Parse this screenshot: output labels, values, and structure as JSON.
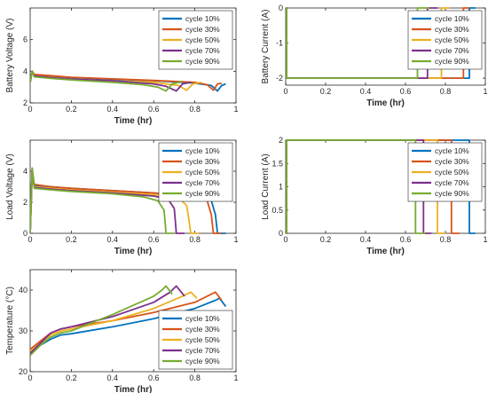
{
  "series_colors": [
    "#0072BD",
    "#D95319",
    "#EDB120",
    "#7E2F8E",
    "#77AC30"
  ],
  "chart_data": [
    {
      "type": "line",
      "ylabel": "Battery Voltage (V)",
      "xlabel": "Time (hr)",
      "xlim": [
        0,
        1
      ],
      "ylim": [
        2,
        8
      ],
      "xticks": [
        "0",
        "0.2",
        "0.4",
        "0.6",
        "0.8",
        "1"
      ],
      "yticks": [
        "2",
        "4",
        "6"
      ],
      "legend_position": "top-right",
      "series": [
        {
          "name": "cycle 10%",
          "x": [
            0,
            0.01,
            0.02,
            0.1,
            0.2,
            0.4,
            0.6,
            0.8,
            0.88,
            0.91,
            0.93,
            0.95
          ],
          "y": [
            3.3,
            4.0,
            3.75,
            3.7,
            3.6,
            3.5,
            3.4,
            3.25,
            3.1,
            2.75,
            3.1,
            3.2
          ]
        },
        {
          "name": "cycle 30%",
          "x": [
            0,
            0.01,
            0.02,
            0.1,
            0.2,
            0.4,
            0.6,
            0.8,
            0.86,
            0.89,
            0.91,
            0.93
          ],
          "y": [
            3.3,
            4.0,
            3.8,
            3.72,
            3.62,
            3.52,
            3.42,
            3.3,
            3.15,
            2.8,
            3.2,
            3.25
          ]
        },
        {
          "name": "cycle 50%",
          "x": [
            0,
            0.01,
            0.02,
            0.1,
            0.2,
            0.4,
            0.6,
            0.72,
            0.76,
            0.79,
            0.83
          ],
          "y": [
            3.3,
            4.0,
            3.7,
            3.62,
            3.5,
            3.4,
            3.3,
            3.1,
            2.8,
            3.2,
            3.3
          ]
        },
        {
          "name": "cycle 70%",
          "x": [
            0,
            0.01,
            0.02,
            0.1,
            0.2,
            0.4,
            0.6,
            0.66,
            0.71,
            0.74,
            0.78
          ],
          "y": [
            3.3,
            4.0,
            3.7,
            3.6,
            3.5,
            3.4,
            3.2,
            3.05,
            2.75,
            3.2,
            3.3
          ]
        },
        {
          "name": "cycle 90%",
          "x": [
            0,
            0.01,
            0.02,
            0.1,
            0.2,
            0.4,
            0.55,
            0.62,
            0.66,
            0.69,
            0.74
          ],
          "y": [
            3.3,
            4.0,
            3.65,
            3.55,
            3.45,
            3.3,
            3.15,
            3.0,
            2.75,
            3.2,
            3.35
          ]
        }
      ]
    },
    {
      "type": "line",
      "ylabel": "Battery Current (A)",
      "xlabel": "Time (hr)",
      "xlim": [
        0,
        1
      ],
      "ylim": [
        -2.2,
        0
      ],
      "xticks": [
        "0",
        "0.2",
        "0.4",
        "0.6",
        "0.8",
        "1"
      ],
      "yticks": [
        "-2",
        "-1",
        "0"
      ],
      "legend_position": "top-right",
      "series": [
        {
          "name": "cycle 10%",
          "x": [
            0,
            0.005,
            0.005,
            0.92,
            0.92,
            0.95
          ],
          "y": [
            0,
            0,
            -2,
            -2,
            0,
            0
          ]
        },
        {
          "name": "cycle 30%",
          "x": [
            0,
            0.005,
            0.005,
            0.89,
            0.89,
            0.92
          ],
          "y": [
            0,
            0,
            -2,
            -2,
            0,
            0
          ]
        },
        {
          "name": "cycle 50%",
          "x": [
            0,
            0.005,
            0.005,
            0.78,
            0.78,
            0.82
          ],
          "y": [
            0,
            0,
            -2,
            -2,
            0,
            0
          ]
        },
        {
          "name": "cycle 70%",
          "x": [
            0,
            0.005,
            0.005,
            0.71,
            0.71,
            0.76
          ],
          "y": [
            0,
            0,
            -2,
            -2,
            0,
            0
          ]
        },
        {
          "name": "cycle 90%",
          "x": [
            0,
            0.005,
            0.005,
            0.66,
            0.66,
            0.72
          ],
          "y": [
            0,
            0,
            -2,
            -2,
            0,
            0
          ]
        }
      ]
    },
    {
      "type": "line",
      "ylabel": "Load Voltage (V)",
      "xlabel": "Time (hr)",
      "xlim": [
        0,
        1
      ],
      "ylim": [
        0,
        6
      ],
      "xticks": [
        "0",
        "0.2",
        "0.4",
        "0.6",
        "0.8",
        "1"
      ],
      "yticks": [
        "0",
        "2",
        "4"
      ],
      "legend_position": "top-right",
      "series": [
        {
          "name": "cycle 10%",
          "x": [
            0,
            0.01,
            0.02,
            0.1,
            0.2,
            0.4,
            0.6,
            0.8,
            0.88,
            0.9,
            0.91,
            0.95
          ],
          "y": [
            0,
            4.0,
            3.1,
            3.0,
            2.9,
            2.75,
            2.6,
            2.4,
            2.1,
            1.2,
            0,
            0
          ]
        },
        {
          "name": "cycle 30%",
          "x": [
            0,
            0.01,
            0.02,
            0.1,
            0.2,
            0.4,
            0.6,
            0.8,
            0.86,
            0.88,
            0.89,
            0.93
          ],
          "y": [
            0,
            4.0,
            3.15,
            3.0,
            2.9,
            2.75,
            2.6,
            2.4,
            2.1,
            1.2,
            0,
            0
          ]
        },
        {
          "name": "cycle 50%",
          "x": [
            0,
            0.01,
            0.02,
            0.1,
            0.2,
            0.4,
            0.6,
            0.72,
            0.76,
            0.77,
            0.78,
            0.82
          ],
          "y": [
            0,
            4.0,
            3.0,
            2.9,
            2.8,
            2.65,
            2.5,
            2.3,
            1.8,
            1.0,
            0,
            0
          ]
        },
        {
          "name": "cycle 70%",
          "x": [
            0,
            0.01,
            0.02,
            0.1,
            0.2,
            0.4,
            0.6,
            0.67,
            0.7,
            0.705,
            0.71,
            0.75
          ],
          "y": [
            0,
            4.2,
            2.95,
            2.85,
            2.75,
            2.6,
            2.4,
            2.2,
            1.6,
            0.8,
            0,
            0
          ]
        },
        {
          "name": "cycle 90%",
          "x": [
            0,
            0.01,
            0.02,
            0.1,
            0.2,
            0.4,
            0.55,
            0.62,
            0.65,
            0.655,
            0.66,
            0.7
          ],
          "y": [
            0,
            4.2,
            2.9,
            2.8,
            2.7,
            2.55,
            2.35,
            2.1,
            1.5,
            0.8,
            0,
            0
          ]
        }
      ]
    },
    {
      "type": "line",
      "ylabel": "Load Current (A)",
      "xlabel": "Time (hr)",
      "xlim": [
        0,
        1
      ],
      "ylim": [
        0,
        2
      ],
      "xticks": [
        "0",
        "0.2",
        "0.4",
        "0.6",
        "0.8",
        "1"
      ],
      "yticks": [
        "0",
        "0.5",
        "1",
        "1.5",
        "2"
      ],
      "legend_position": "top-right",
      "series": [
        {
          "name": "cycle 10%",
          "x": [
            0,
            0.005,
            0.005,
            0.92,
            0.92,
            0.95
          ],
          "y": [
            0,
            0,
            2,
            2,
            0,
            0
          ]
        },
        {
          "name": "cycle 30%",
          "x": [
            0,
            0.005,
            0.005,
            0.83,
            0.83,
            0.87
          ],
          "y": [
            0,
            0,
            2,
            2,
            0,
            0
          ]
        },
        {
          "name": "cycle 50%",
          "x": [
            0,
            0.005,
            0.005,
            0.76,
            0.76,
            0.8
          ],
          "y": [
            0,
            0,
            2,
            2,
            0,
            0
          ]
        },
        {
          "name": "cycle 70%",
          "x": [
            0,
            0.005,
            0.005,
            0.69,
            0.69,
            0.73
          ],
          "y": [
            0,
            0,
            2,
            2,
            0,
            0
          ]
        },
        {
          "name": "cycle 90%",
          "x": [
            0,
            0.005,
            0.005,
            0.65,
            0.65,
            0.7
          ],
          "y": [
            0,
            0,
            2,
            2,
            0,
            0
          ]
        }
      ]
    },
    {
      "type": "line",
      "ylabel": "Temperature (°C)",
      "xlabel": "Time (hr)",
      "xlim": [
        0,
        1
      ],
      "ylim": [
        20,
        45
      ],
      "xticks": [
        "0",
        "0.2",
        "0.4",
        "0.6",
        "0.8",
        "1"
      ],
      "yticks": [
        "20",
        "30",
        "40"
      ],
      "legend_position": "bottom-right",
      "series": [
        {
          "name": "cycle 10%",
          "x": [
            0,
            0.05,
            0.1,
            0.15,
            0.2,
            0.4,
            0.6,
            0.8,
            0.9,
            0.92,
            0.95
          ],
          "y": [
            24.5,
            26.5,
            28.0,
            29.0,
            29.3,
            31.0,
            33.0,
            35.5,
            37.5,
            38.0,
            36.0
          ]
        },
        {
          "name": "cycle 30%",
          "x": [
            0,
            0.05,
            0.1,
            0.15,
            0.2,
            0.4,
            0.6,
            0.8,
            0.88,
            0.9,
            0.93
          ],
          "y": [
            25.5,
            27.5,
            29.5,
            30.5,
            31.0,
            32.5,
            34.5,
            37.0,
            39.0,
            39.5,
            37.5
          ]
        },
        {
          "name": "cycle 50%",
          "x": [
            0,
            0.05,
            0.1,
            0.15,
            0.2,
            0.4,
            0.6,
            0.74,
            0.78,
            0.81
          ],
          "y": [
            25.0,
            27.0,
            29.0,
            30.0,
            30.5,
            32.5,
            35.5,
            38.5,
            39.5,
            38.0
          ]
        },
        {
          "name": "cycle 70%",
          "x": [
            0,
            0.05,
            0.1,
            0.15,
            0.2,
            0.4,
            0.6,
            0.68,
            0.71,
            0.75
          ],
          "y": [
            24.5,
            27.0,
            29.5,
            30.5,
            31.0,
            33.5,
            37.0,
            39.5,
            41.0,
            38.5
          ]
        },
        {
          "name": "cycle 90%",
          "x": [
            0,
            0.05,
            0.1,
            0.15,
            0.2,
            0.4,
            0.6,
            0.64,
            0.66,
            0.69
          ],
          "y": [
            24.0,
            26.5,
            28.5,
            29.5,
            30.0,
            34.0,
            38.5,
            40.0,
            41.0,
            39.0
          ]
        }
      ]
    }
  ]
}
